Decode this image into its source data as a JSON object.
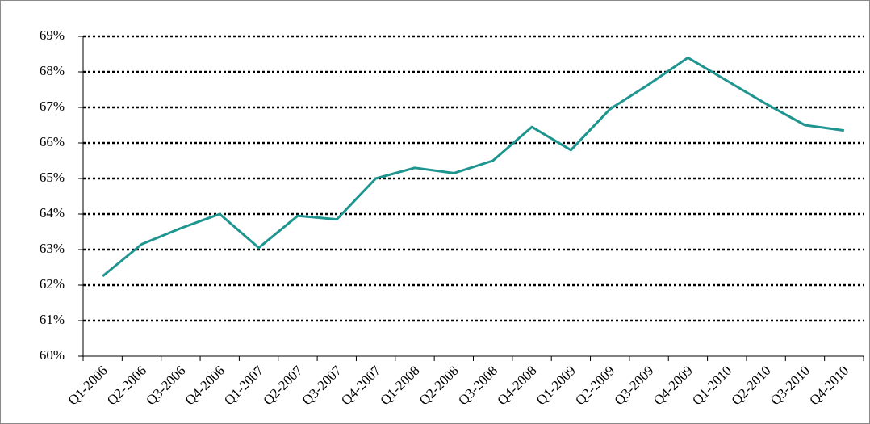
{
  "chart_data": {
    "type": "line",
    "categories": [
      "Q1-2006",
      "Q2-2006",
      "Q3-2006",
      "Q4-2006",
      "Q1-2007",
      "Q2-2007",
      "Q3-2007",
      "Q4-2007",
      "Q1-2008",
      "Q2-2008",
      "Q3-2008",
      "Q4-2008",
      "Q1-2009",
      "Q2-2009",
      "Q3-2009",
      "Q4-2009",
      "Q1-2010",
      "Q2-2010",
      "Q3-2010",
      "Q4-2010"
    ],
    "values": [
      62.25,
      63.15,
      63.6,
      64.0,
      63.05,
      63.95,
      63.85,
      65.0,
      65.3,
      65.15,
      65.5,
      66.45,
      65.8,
      66.95,
      67.65,
      68.4,
      67.75,
      67.1,
      66.5,
      66.35
    ],
    "color": "#1f9590",
    "ylim": [
      60,
      69
    ],
    "yticks": [
      {
        "value": 60,
        "label": "60%"
      },
      {
        "value": 61,
        "label": "61%"
      },
      {
        "value": 62,
        "label": "62%"
      },
      {
        "value": 63,
        "label": "63%"
      },
      {
        "value": 64,
        "label": "64%"
      },
      {
        "value": 65,
        "label": "65%"
      },
      {
        "value": 66,
        "label": "66%"
      },
      {
        "value": 67,
        "label": "67%"
      },
      {
        "value": 68,
        "label": "68%"
      },
      {
        "value": 69,
        "label": "69%"
      }
    ],
    "grid": true
  }
}
